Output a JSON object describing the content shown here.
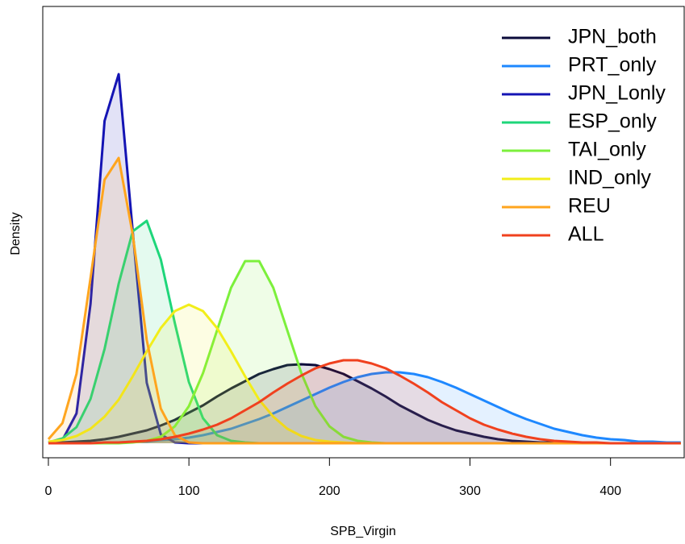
{
  "chart_data": {
    "type": "density",
    "x_label": "SPB_Virgin",
    "y_label": "Density",
    "legend": "top-right",
    "xlim": [
      -4,
      453
    ],
    "ylim": [
      -1.8,
      54.2
    ],
    "xticks": [
      0,
      100,
      200,
      300,
      400
    ],
    "x": [
      0,
      10,
      20,
      30,
      40,
      50,
      60,
      70,
      80,
      90,
      100,
      110,
      120,
      130,
      140,
      150,
      160,
      170,
      180,
      190,
      200,
      210,
      220,
      230,
      240,
      250,
      260,
      270,
      280,
      290,
      300,
      310,
      320,
      330,
      340,
      350,
      360,
      370,
      380,
      390,
      400,
      410,
      420,
      430,
      440,
      450
    ],
    "series": [
      {
        "name": "JPN_both",
        "color": "#0b0b3b",
        "values": [
          0.1,
          0.1,
          0.2,
          0.3,
          0.5,
          0.8,
          1.2,
          1.6,
          2.2,
          2.9,
          3.8,
          4.7,
          5.8,
          6.8,
          7.7,
          8.6,
          9.2,
          9.7,
          9.8,
          9.7,
          9.2,
          8.6,
          7.7,
          6.8,
          5.8,
          4.7,
          3.8,
          2.9,
          2.2,
          1.6,
          1.2,
          0.8,
          0.5,
          0.3,
          0.2,
          0.1,
          0.1,
          0.1,
          0,
          0,
          0,
          0,
          0,
          0,
          0,
          0
        ]
      },
      {
        "name": "PRT_only",
        "color": "#1e88ff",
        "values": [
          0,
          0,
          0,
          0,
          0.1,
          0.1,
          0.2,
          0.2,
          0.4,
          0.5,
          0.7,
          1.0,
          1.4,
          1.8,
          2.4,
          3.0,
          3.7,
          4.5,
          5.3,
          6.1,
          6.9,
          7.6,
          8.2,
          8.6,
          8.8,
          8.8,
          8.6,
          8.2,
          7.6,
          6.9,
          6.1,
          5.3,
          4.5,
          3.7,
          3.0,
          2.4,
          1.8,
          1.4,
          1.0,
          0.7,
          0.5,
          0.4,
          0.2,
          0.2,
          0.1,
          0.1
        ]
      },
      {
        "name": "JPN_Lonly",
        "color": "#1414b4",
        "values": [
          0,
          0.4,
          3.7,
          17.3,
          40.0,
          45.8,
          26.3,
          7.5,
          1.1,
          0.1,
          0,
          0,
          0,
          0,
          0,
          0,
          0,
          0,
          0,
          0,
          0,
          0,
          0,
          0,
          0,
          0,
          0,
          0,
          0,
          0,
          0,
          0,
          0,
          0,
          0,
          0,
          0,
          0,
          0,
          0,
          0,
          0,
          0,
          0,
          0,
          0
        ]
      },
      {
        "name": "ESP_only",
        "color": "#1ed67a",
        "values": [
          0.1,
          0.6,
          2.0,
          5.5,
          11.7,
          19.8,
          26.3,
          27.6,
          22.8,
          14.9,
          7.6,
          3.1,
          1.0,
          0.3,
          0.1,
          0,
          0,
          0,
          0,
          0,
          0,
          0,
          0,
          0,
          0,
          0,
          0,
          0,
          0,
          0,
          0,
          0,
          0,
          0,
          0,
          0,
          0,
          0,
          0,
          0,
          0,
          0,
          0,
          0,
          0,
          0
        ]
      },
      {
        "name": "TAI_only",
        "color": "#7cf03c",
        "values": [
          0,
          0,
          0,
          0,
          0,
          0,
          0.1,
          0.3,
          0.8,
          2.1,
          4.6,
          8.7,
          14.0,
          19.3,
          22.6,
          22.6,
          19.3,
          14.0,
          8.7,
          4.6,
          2.1,
          0.8,
          0.3,
          0.1,
          0,
          0,
          0,
          0,
          0,
          0,
          0,
          0,
          0,
          0,
          0,
          0,
          0,
          0,
          0,
          0,
          0,
          0,
          0,
          0,
          0,
          0
        ]
      },
      {
        "name": "IND_only",
        "color": "#f2ee1a",
        "values": [
          0.2,
          0.4,
          0.9,
          1.8,
          3.3,
          5.4,
          8.3,
          11.4,
          14.3,
          16.4,
          17.2,
          16.4,
          14.3,
          11.4,
          8.3,
          5.4,
          3.3,
          1.8,
          0.9,
          0.4,
          0.2,
          0.1,
          0,
          0,
          0,
          0,
          0,
          0,
          0,
          0,
          0,
          0,
          0,
          0,
          0,
          0,
          0,
          0,
          0,
          0,
          0,
          0,
          0,
          0,
          0,
          0
        ]
      },
      {
        "name": "REU",
        "color": "#ffa51e",
        "values": [
          0.5,
          2.5,
          8.6,
          20.5,
          32.7,
          35.4,
          25.9,
          12.8,
          4.3,
          1.0,
          0.1,
          0,
          0,
          0,
          0,
          0,
          0,
          0,
          0,
          0,
          0,
          0,
          0,
          0,
          0,
          0,
          0,
          0,
          0,
          0,
          0,
          0,
          0,
          0,
          0,
          0,
          0,
          0,
          0,
          0,
          0,
          0,
          0,
          0,
          0,
          0
        ]
      },
      {
        "name": "ALL",
        "color": "#f0411e",
        "values": [
          0,
          0,
          0,
          0,
          0.1,
          0.1,
          0.2,
          0.3,
          0.5,
          0.8,
          1.2,
          1.7,
          2.3,
          3.1,
          4.1,
          5.1,
          6.3,
          7.4,
          8.4,
          9.3,
          9.9,
          10.3,
          10.3,
          9.9,
          9.3,
          8.4,
          7.4,
          6.3,
          5.1,
          4.1,
          3.1,
          2.3,
          1.7,
          1.2,
          0.8,
          0.5,
          0.3,
          0.2,
          0.1,
          0.1,
          0,
          0,
          0,
          0,
          0,
          0
        ]
      }
    ]
  }
}
